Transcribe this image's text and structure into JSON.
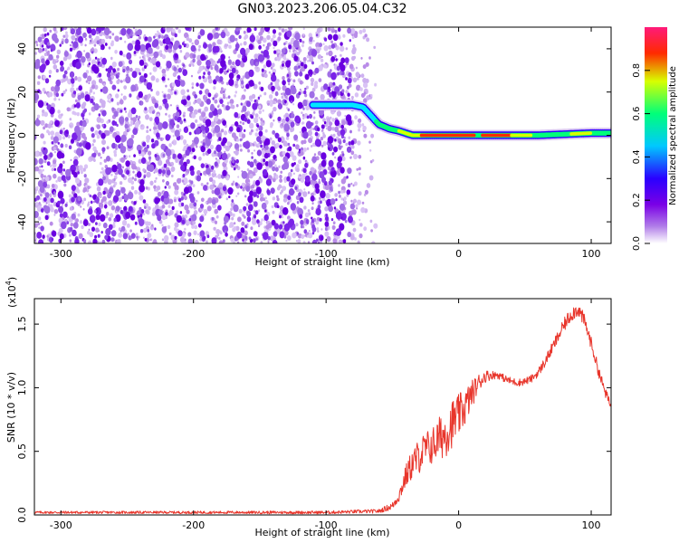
{
  "title": "GN03.2023.206.05.04.C32",
  "chart_data": [
    {
      "type": "heatmap",
      "title": "GN03.2023.206.05.04.C32",
      "xlabel": "Height of straight line (km)",
      "ylabel": "Frequency (Hz)",
      "xlim": [
        -320,
        115
      ],
      "ylim": [
        -50,
        50
      ],
      "x_ticks": [
        "-300",
        "-200",
        "-100",
        "0",
        "100"
      ],
      "y_ticks": [
        "40",
        "20",
        "0",
        "-20",
        "-40"
      ],
      "noise_region_x": [
        -320,
        -60
      ],
      "ridge_frequency": {
        "x": [
          -110,
          -95,
          -80,
          -72,
          -66,
          -60,
          -52,
          -45,
          -35,
          -20,
          0,
          20,
          40,
          60,
          80,
          100,
          115
        ],
        "y": [
          14,
          14,
          14,
          13,
          9,
          5,
          3,
          2,
          0,
          0,
          0,
          0,
          0,
          0,
          0.5,
          1,
          1
        ]
      },
      "colorbar": {
        "label": "Normalized spectral amplitude",
        "range": [
          0.0,
          1.0
        ],
        "ticks": [
          "0.0",
          "0.2",
          "0.4",
          "0.6",
          "0.8"
        ],
        "colormap": [
          "#ffffff",
          "#b07ce8",
          "#7a00e6",
          "#2a00ff",
          "#00c8ff",
          "#00ff7a",
          "#d8ff00",
          "#ff2a00",
          "#ff1a7a"
        ]
      }
    },
    {
      "type": "line",
      "xlabel": "Height of straight line (km)",
      "ylabel": "SNR (10 * v/v)",
      "y_exponent_label": "(x10",
      "y_exponent_power": "4",
      "y_exponent_close": ")",
      "xlim": [
        -320,
        115
      ],
      "ylim": [
        0,
        17000
      ],
      "x_ticks": [
        "-300",
        "-200",
        "-100",
        "0",
        "100"
      ],
      "y_ticks": [
        "0.0",
        "0.5",
        "1.0",
        "1.5"
      ],
      "series": [
        {
          "color": "#e8352b",
          "x": [
            -320,
            -200,
            -100,
            -60,
            -50,
            -45,
            -40,
            -35,
            -30,
            -25,
            -20,
            -15,
            -10,
            -5,
            0,
            5,
            10,
            15,
            20,
            25,
            30,
            35,
            40,
            45,
            50,
            55,
            60,
            65,
            70,
            75,
            80,
            85,
            90,
            95,
            100,
            105,
            110,
            115
          ],
          "y": [
            200,
            200,
            200,
            300,
            700,
            1500,
            3000,
            4000,
            4600,
            5200,
            5400,
            6000,
            6400,
            7200,
            7800,
            8500,
            9500,
            10400,
            10900,
            11000,
            11000,
            10700,
            10500,
            10400,
            10500,
            10700,
            11200,
            12000,
            13000,
            14000,
            15000,
            15800,
            16200,
            15200,
            13500,
            11500,
            9800,
            8500
          ],
          "noise_amplitude": [
            100,
            100,
            120,
            150,
            300,
            500,
            900,
            1200,
            1400,
            1400,
            1500,
            1700,
            1900,
            1900,
            1700,
            1500,
            1100,
            700,
            500,
            350,
            300,
            300,
            300,
            300,
            300,
            300,
            350,
            400,
            450,
            500,
            550,
            600,
            600,
            550,
            500,
            450,
            400,
            350
          ]
        }
      ]
    }
  ]
}
